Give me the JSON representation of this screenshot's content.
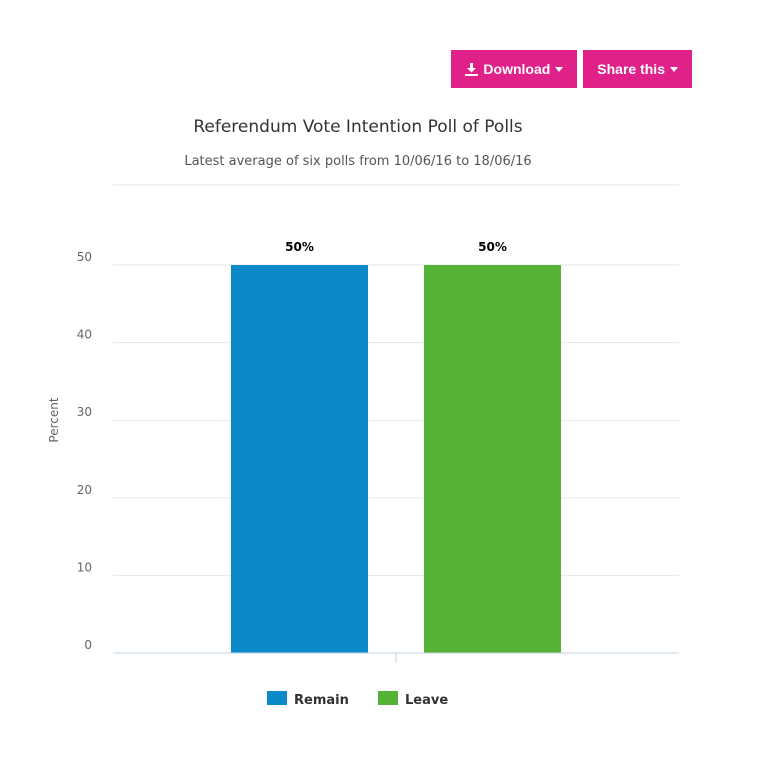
{
  "toolbar": {
    "download_label": "Download",
    "share_label": "Share this",
    "accent_color": "#e0218a"
  },
  "chart_data": {
    "type": "bar",
    "title": "Referendum Vote Intention Poll of Polls",
    "subtitle": "Latest average of six polls from 10/06/16 to 18/06/16",
    "xlabel": "",
    "ylabel": "Percent",
    "ylim": [
      0,
      50
    ],
    "yticks": [
      0,
      10,
      20,
      30,
      40,
      50
    ],
    "grid": true,
    "legend_position": "bottom",
    "categories": [
      "Remain",
      "Leave"
    ],
    "series": [
      {
        "name": "Remain",
        "values": [
          50,
          null
        ],
        "color": "#0a8ac8",
        "data_labels": [
          "50%",
          null
        ]
      },
      {
        "name": "Leave",
        "values": [
          null,
          50
        ],
        "color": "#54b234",
        "data_labels": [
          null,
          "50%"
        ]
      }
    ]
  }
}
